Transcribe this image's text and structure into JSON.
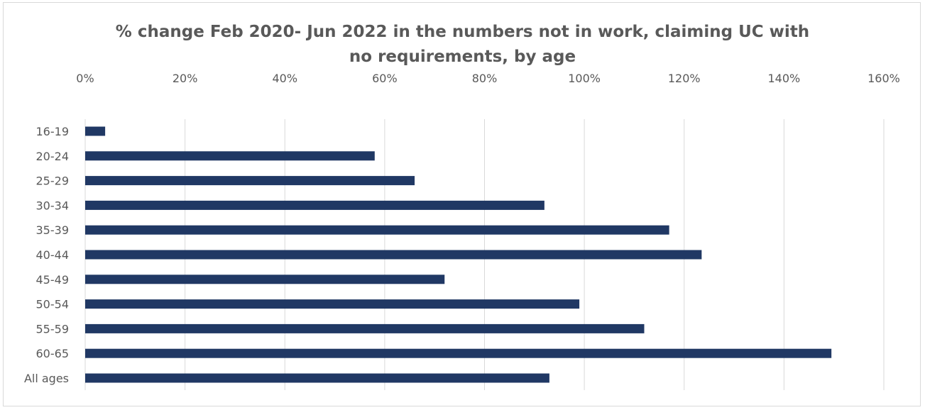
{
  "chart_data": {
    "type": "bar",
    "orientation": "horizontal",
    "title": "% change Feb 2020- Jun 2022 in the numbers not in work, claiming UC with no requirements, by age",
    "title_lines": [
      "% change Feb 2020- Jun 2022 in the numbers not in work, claiming UC with",
      "no requirements, by age"
    ],
    "categories": [
      "16-19",
      "20-24",
      "25-29",
      "30-34",
      "35-39",
      "40-44",
      "45-49",
      "50-54",
      "55-59",
      "60-65",
      "All ages"
    ],
    "values": [
      0.04,
      0.58,
      0.66,
      0.92,
      1.17,
      1.235,
      0.72,
      0.99,
      1.12,
      1.495,
      0.93
    ],
    "xlim": [
      0,
      1.6
    ],
    "x_ticks": [
      0,
      0.2,
      0.4,
      0.6,
      0.8,
      1.0,
      1.2,
      1.4,
      1.6
    ],
    "x_tick_labels": [
      "0%",
      "20%",
      "40%",
      "60%",
      "80%",
      "100%",
      "120%",
      "140%",
      "160%"
    ],
    "x_axis_position": "top",
    "xlabel": "",
    "ylabel": "",
    "grid": true,
    "legend": "none",
    "colors": {
      "bar": "#203864",
      "grid": "#d9d9d9",
      "text": "#595959"
    }
  }
}
